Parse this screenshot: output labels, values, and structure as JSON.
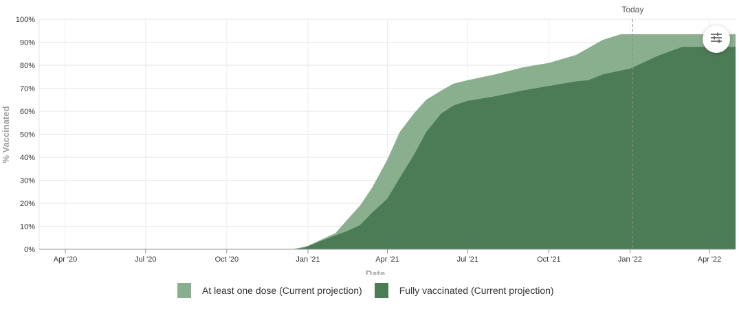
{
  "chart_data": {
    "type": "area",
    "xlabel": "Date",
    "ylabel": "% Vaccinated",
    "ylim": [
      0,
      100
    ],
    "xlim": [
      "2020-03-01",
      "2022-05-01"
    ],
    "x_ticks": [
      {
        "date": "2020-04-01",
        "label": "Apr '20"
      },
      {
        "date": "2020-07-01",
        "label": "Jul '20"
      },
      {
        "date": "2020-10-01",
        "label": "Oct '20"
      },
      {
        "date": "2021-01-01",
        "label": "Jan '21"
      },
      {
        "date": "2021-04-01",
        "label": "Apr '21"
      },
      {
        "date": "2021-07-01",
        "label": "Jul '21"
      },
      {
        "date": "2021-10-01",
        "label": "Oct '21"
      },
      {
        "date": "2022-01-01",
        "label": "Jan '22"
      },
      {
        "date": "2022-04-01",
        "label": "Apr '22"
      }
    ],
    "y_ticks": [
      0,
      10,
      20,
      30,
      40,
      50,
      60,
      70,
      80,
      90,
      100
    ],
    "y_tick_suffix": "%",
    "grid": true,
    "legend_position": "bottom",
    "today": {
      "date": "2022-01-04",
      "label": "Today"
    },
    "series": [
      {
        "name": "At least one dose (Current projection)",
        "color": "#8aaf8f",
        "points": [
          [
            "2020-03-01",
            0
          ],
          [
            "2020-12-14",
            0
          ],
          [
            "2020-12-21",
            0.5
          ],
          [
            "2021-01-01",
            1.5
          ],
          [
            "2021-01-15",
            4
          ],
          [
            "2021-02-01",
            7
          ],
          [
            "2021-02-15",
            13
          ],
          [
            "2021-03-01",
            19
          ],
          [
            "2021-03-15",
            27
          ],
          [
            "2021-04-01",
            39
          ],
          [
            "2021-04-15",
            51
          ],
          [
            "2021-05-01",
            59
          ],
          [
            "2021-05-15",
            65
          ],
          [
            "2021-06-01",
            69
          ],
          [
            "2021-06-15",
            72
          ],
          [
            "2021-07-01",
            73.5
          ],
          [
            "2021-08-01",
            76
          ],
          [
            "2021-09-01",
            79
          ],
          [
            "2021-10-01",
            81
          ],
          [
            "2021-11-01",
            84.5
          ],
          [
            "2021-12-01",
            91
          ],
          [
            "2021-12-22",
            93.5
          ],
          [
            "2022-05-01",
            93.5
          ]
        ]
      },
      {
        "name": "Fully vaccinated (Current projection)",
        "color": "#4c7c56",
        "points": [
          [
            "2020-03-01",
            0
          ],
          [
            "2020-12-14",
            0
          ],
          [
            "2020-12-28",
            0.7
          ],
          [
            "2021-01-15",
            3.5
          ],
          [
            "2021-02-01",
            6
          ],
          [
            "2021-02-15",
            8
          ],
          [
            "2021-03-01",
            10.5
          ],
          [
            "2021-03-15",
            16
          ],
          [
            "2021-04-01",
            22
          ],
          [
            "2021-04-15",
            31
          ],
          [
            "2021-05-01",
            41
          ],
          [
            "2021-05-15",
            51
          ],
          [
            "2021-06-01",
            59
          ],
          [
            "2021-06-15",
            62.5
          ],
          [
            "2021-07-01",
            64.5
          ],
          [
            "2021-08-01",
            66.5
          ],
          [
            "2021-09-01",
            69
          ],
          [
            "2021-10-01",
            71
          ],
          [
            "2021-11-01",
            73
          ],
          [
            "2021-11-15",
            73.5
          ],
          [
            "2021-12-01",
            76
          ],
          [
            "2022-01-01",
            78.5
          ],
          [
            "2022-02-01",
            84
          ],
          [
            "2022-03-01",
            88
          ],
          [
            "2022-05-01",
            88
          ]
        ]
      }
    ]
  },
  "filter_button": {
    "icon": "sliders-icon"
  }
}
